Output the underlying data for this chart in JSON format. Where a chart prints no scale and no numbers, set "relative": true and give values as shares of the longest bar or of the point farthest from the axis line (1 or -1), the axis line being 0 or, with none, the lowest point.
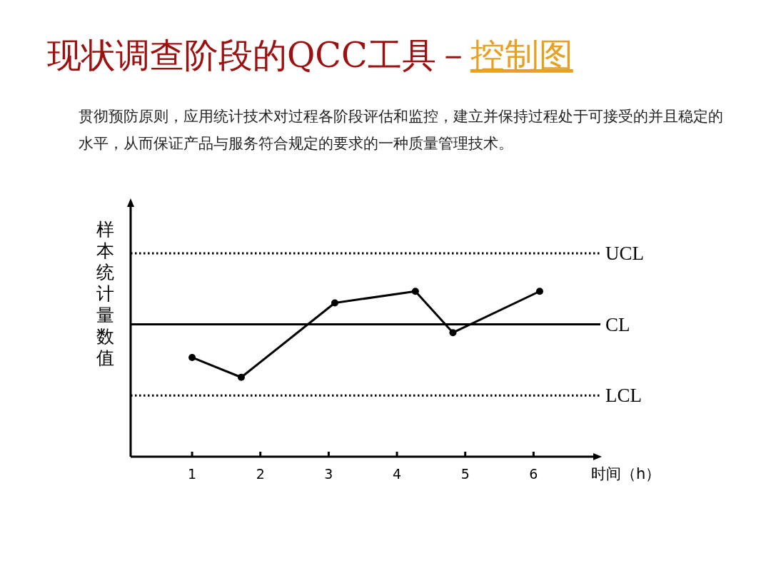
{
  "chart_data": {
    "type": "line",
    "title": "现状调查阶段的QCC工具－控制图",
    "subtitle": "贯彻预防原则，应用统计技术对过程各阶段评估和监控，建立并保持过程处于可接受的并且稳定的水平，从而保证产品与服务符合规定的要求的一种质量管理技术。",
    "xlabel": "时间（h）",
    "ylabel": "样本统计量数值",
    "relative": true,
    "x": [
      1.0,
      1.72,
      3.09,
      4.27,
      4.82,
      6.09
    ],
    "series": [
      {
        "color": "#000000",
        "values": [
          0.6,
          0.48,
          0.93,
          1,
          0.75,
          1
        ]
      }
    ],
    "xlim": [
      0.1,
      7.0
    ],
    "xticks": [
      1,
      2,
      3,
      4,
      5,
      6
    ],
    "tick_labels": "x",
    "marker": "circle",
    "line_style": "solid",
    "grid": false,
    "ref_lines": [
      {
        "axis": "y",
        "value": 1.23,
        "label": "UCL",
        "line_style": "dotted",
        "color": "#000000"
      },
      {
        "axis": "y",
        "value": 0.8,
        "label": "CL",
        "line_style": "solid",
        "color": "#000000"
      },
      {
        "axis": "y",
        "value": 0.37,
        "label": "LCL",
        "line_style": "dotted",
        "color": "#000000"
      }
    ]
  }
}
